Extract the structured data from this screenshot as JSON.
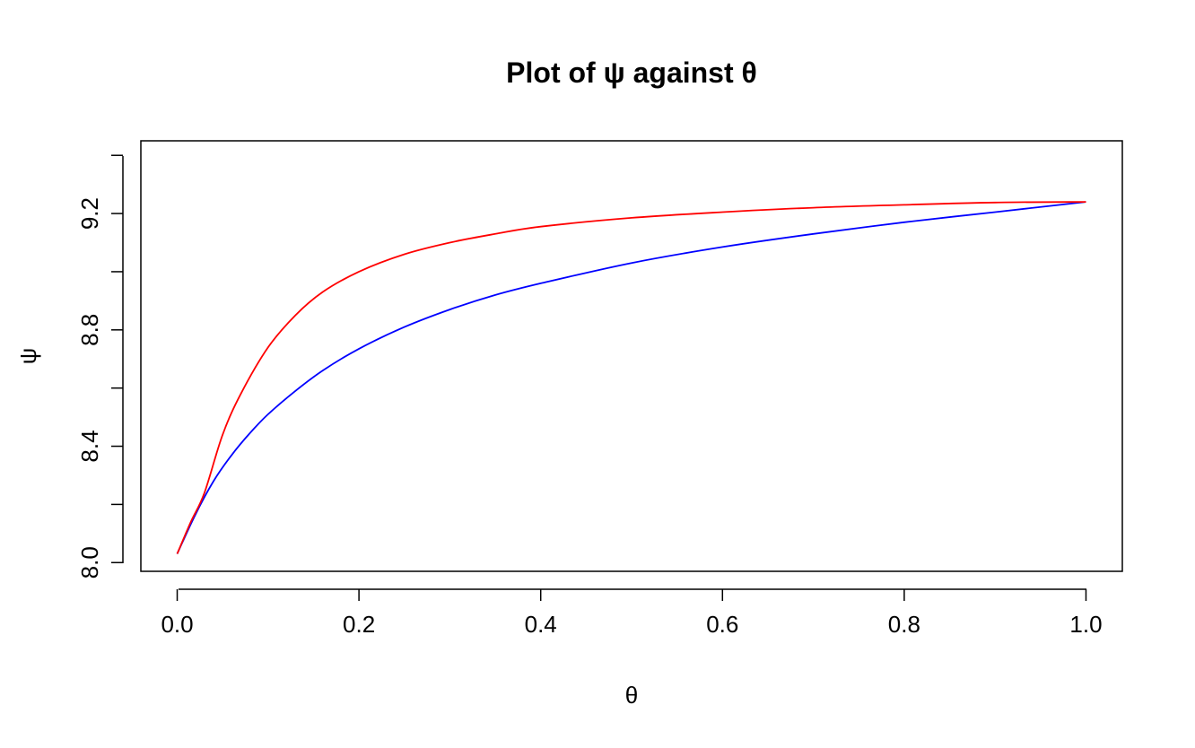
{
  "chart_data": {
    "type": "line",
    "title": "Plot of ψ against θ",
    "xlabel": "θ",
    "ylabel": "ψ",
    "xlim": [
      -0.04,
      1.04
    ],
    "ylim": [
      7.97,
      9.45
    ],
    "grid": false,
    "x_ticks": [
      0.0,
      0.2,
      0.4,
      0.6,
      0.8,
      1.0
    ],
    "x_tick_labels": [
      "0.0",
      "0.2",
      "0.4",
      "0.6",
      "0.8",
      "1.0"
    ],
    "y_ticks": [
      8.0,
      8.2,
      8.4,
      8.6,
      8.8,
      9.0,
      9.2,
      9.4
    ],
    "y_tick_labels": [
      "8.0",
      "",
      "8.4",
      "",
      "8.8",
      "",
      "9.2",
      ""
    ],
    "series": [
      {
        "color": "#0000ff",
        "x": [
          0.0,
          0.02,
          0.04,
          0.06,
          0.08,
          0.1,
          0.13,
          0.16,
          0.2,
          0.25,
          0.3,
          0.35,
          0.4,
          0.5,
          0.6,
          0.7,
          0.8,
          0.9,
          1.0
        ],
        "y": [
          8.03,
          8.165,
          8.28,
          8.37,
          8.445,
          8.51,
          8.59,
          8.66,
          8.735,
          8.81,
          8.87,
          8.92,
          8.96,
          9.03,
          9.085,
          9.13,
          9.17,
          9.205,
          9.24
        ]
      },
      {
        "color": "#ff0000",
        "x": [
          0.0,
          0.015,
          0.03,
          0.05,
          0.07,
          0.1,
          0.13,
          0.16,
          0.2,
          0.25,
          0.3,
          0.35,
          0.4,
          0.5,
          0.6,
          0.7,
          0.8,
          0.9,
          1.0
        ],
        "y": [
          8.03,
          8.14,
          8.24,
          8.44,
          8.58,
          8.74,
          8.85,
          8.93,
          9.0,
          9.06,
          9.1,
          9.13,
          9.155,
          9.185,
          9.205,
          9.22,
          9.23,
          9.238,
          9.24
        ]
      }
    ]
  }
}
